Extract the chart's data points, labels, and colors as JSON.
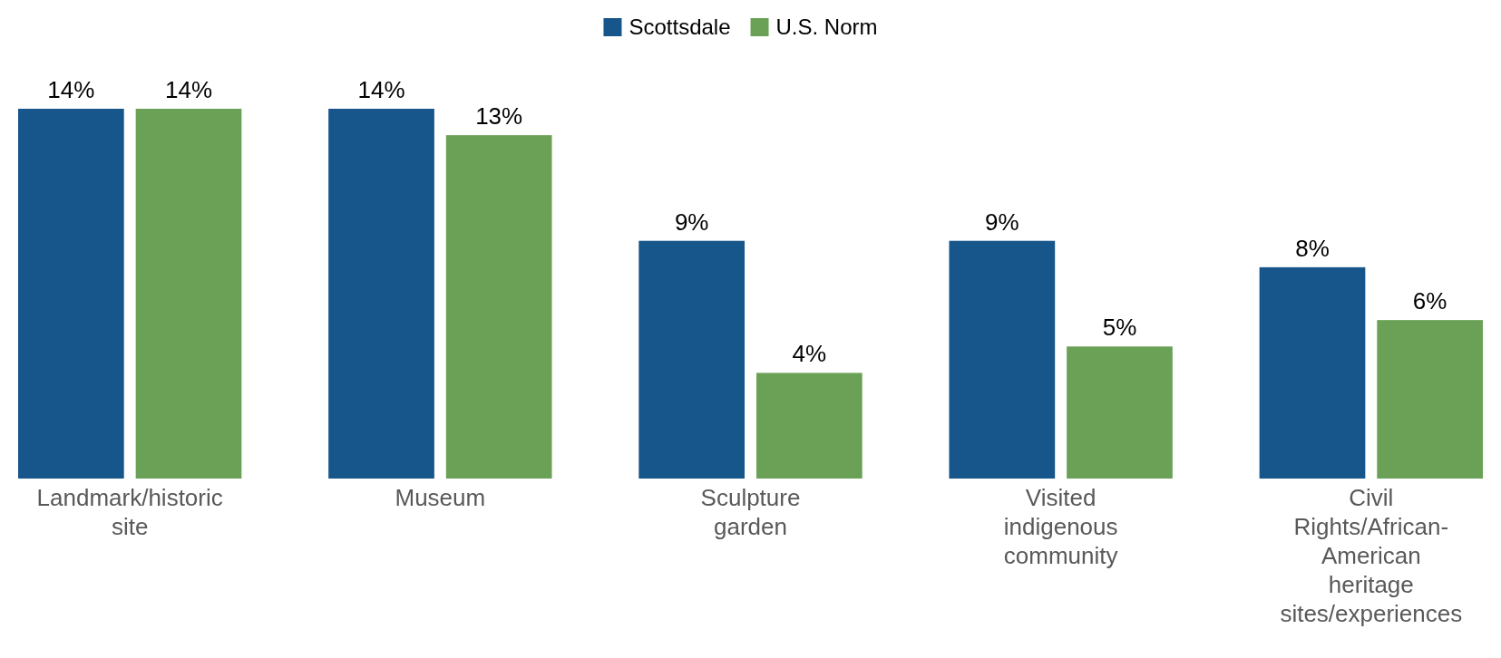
{
  "chart_data": {
    "type": "bar",
    "categories": [
      "Landmark/historic site",
      "Museum",
      "Sculpture garden",
      "Visited indigenous community",
      "Civil Rights/African-American heritage sites/experiences"
    ],
    "series": [
      {
        "name": "Scottsdale",
        "color": "#17568a",
        "values": [
          14,
          14,
          9,
          9,
          8
        ],
        "value_labels": [
          "14%",
          "14%",
          "9%",
          "9%",
          "8%"
        ]
      },
      {
        "name": "U.S. Norm",
        "color": "#6aa156",
        "values": [
          14,
          13,
          4,
          5,
          6
        ],
        "value_labels": [
          "14%",
          "13%",
          "4%",
          "5%",
          "6%"
        ]
      }
    ],
    "legend": "top",
    "grid": false
  }
}
